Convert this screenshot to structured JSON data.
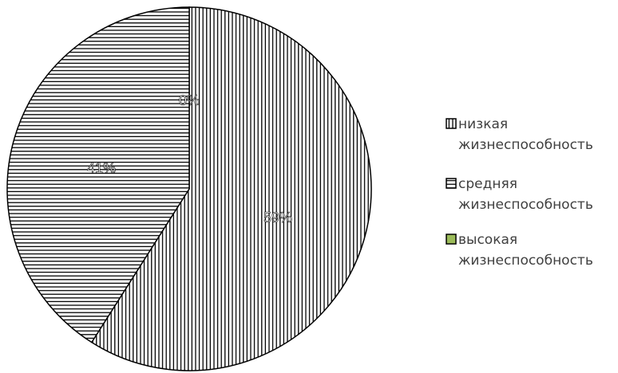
{
  "chart_data": {
    "type": "pie",
    "title": "",
    "categories": [
      "низкая жизнеспособность",
      "средняя жизнеспособность",
      "высокая жизнеспособность"
    ],
    "values": [
      59,
      41,
      0
    ],
    "data_labels": [
      "59%",
      "41%",
      "0%"
    ],
    "legend": {
      "position": "right",
      "entries": [
        {
          "line1": "низкая",
          "line2": "жизнеспособность",
          "pattern": "vertical-lines",
          "color": "#000000"
        },
        {
          "line1": "средняя",
          "line2": "жизнеспособность",
          "pattern": "horizontal-lines",
          "color": "#000000"
        },
        {
          "line1": "высокая",
          "line2": "жизнеспособность",
          "pattern": "solid",
          "color": "#9BBB59"
        }
      ]
    },
    "colors": {
      "outline": "#000000",
      "background": "#ffffff",
      "legend_text": "#404040",
      "high_viability": "#9BBB59"
    }
  }
}
